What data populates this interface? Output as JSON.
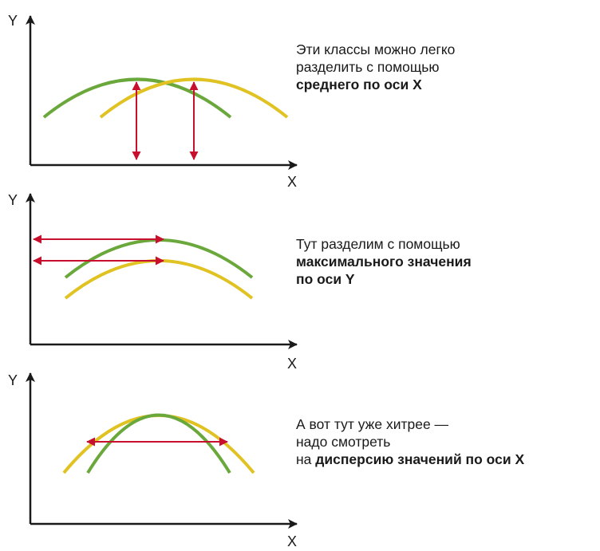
{
  "colors": {
    "axis": "#1a1a1a",
    "green_curve": "#6aa83b",
    "yellow_curve": "#e1c223",
    "arrow": "#c8102e"
  },
  "panels": [
    {
      "y_label": "Y",
      "x_label": "X",
      "caption": [
        {
          "plain": "Эти классы можно легко",
          "bold": ""
        },
        {
          "plain": "разделить с помощью",
          "bold": ""
        },
        {
          "plain": "",
          "bold": "среднего по оси X"
        }
      ]
    },
    {
      "y_label": "Y",
      "x_label": "X",
      "caption": [
        {
          "plain": "Тут разделим с помощью",
          "bold": ""
        },
        {
          "plain": "",
          "bold": "максимального значения"
        },
        {
          "plain": "",
          "bold": "по оси Y"
        }
      ]
    },
    {
      "y_label": "Y",
      "x_label": "X",
      "caption": [
        {
          "plain": "А вот тут уже хитрее  —",
          "bold": ""
        },
        {
          "plain": "надо смотреть",
          "bold": ""
        },
        {
          "plain": "на ",
          "bold": "дисперсию значений по оси X"
        }
      ]
    }
  ]
}
